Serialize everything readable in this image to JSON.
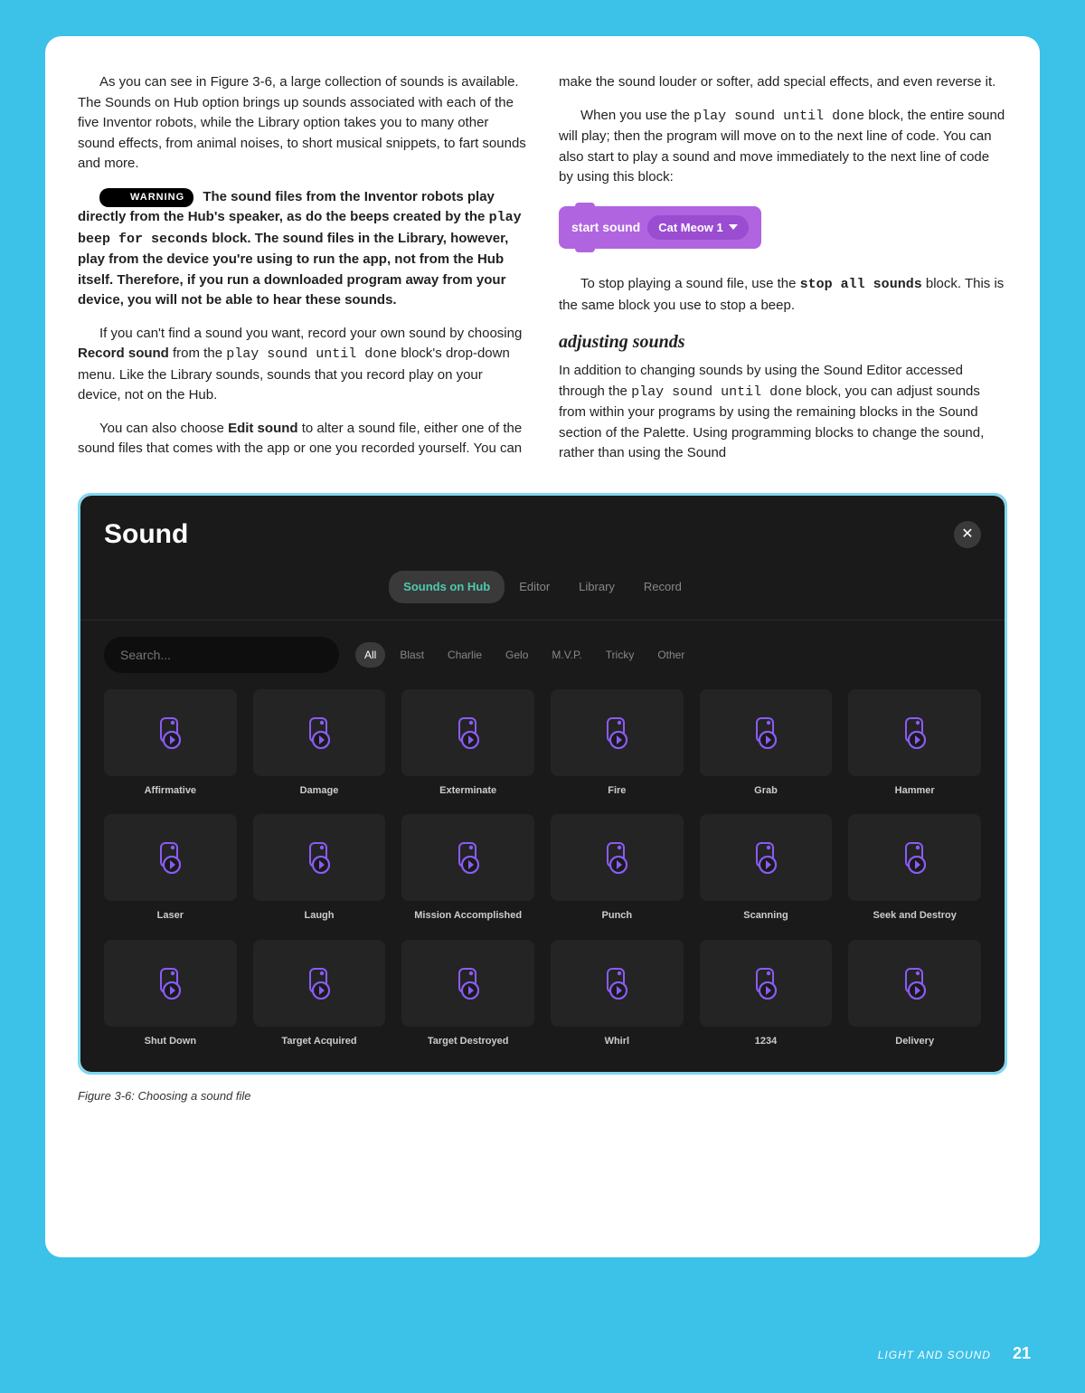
{
  "page_bg": "#3cc1e8",
  "content_bg": "#ffffff",
  "text": {
    "p1": "As you can see in Figure 3-6, a large collection of sounds is available. The Sounds on Hub option brings up sounds associated with each of the five Inventor robots, while the Library option takes you to many other sound effects, from animal noises, to short musical snippets, to fart sounds and more.",
    "warning_label": "WARNING",
    "warning_pre": "The sound files from the Inventor robots play directly from the Hub's speaker, as do the beeps created by the ",
    "warning_code": "play beep for seconds",
    "warning_post": " block. The sound files in the Library, however, play from the device you're using to run the app, not from the Hub itself. Therefore, if you run a downloaded program away from your device, you will not be able to hear these sounds.",
    "p3a": "If you can't find a sound you want, record your own sound by choosing ",
    "p3b_bold": "Record sound",
    "p3c": " from the ",
    "p3_code": "play sound until done",
    "p3d": " block's drop-down menu. Like the Library sounds, sounds that you record play on your device, not on the Hub.",
    "p4a": "You can also choose ",
    "p4b_bold": "Edit sound",
    "p4c": " to alter a sound file, either one of the sound files that comes with the app or one you recorded yourself. You can make the sound louder or softer, add special effects, and even reverse it.",
    "p5a": "When you use the ",
    "p5_code": "play sound until done",
    "p5b": " block, the entire sound will play; then the program will move on to the next line of code. You can also start to play a sound and move immediately to the next line of code by using this block:",
    "scratch_label": "start sound",
    "scratch_value": "Cat Meow 1",
    "p6a": "To stop playing a sound file, use the ",
    "p6_code": "stop all sounds",
    "p6b": " block. This is the same block you use to stop a beep.",
    "subhead": "adjusting sounds",
    "p7a": "In addition to changing sounds by using the Sound Editor accessed through the ",
    "p7_code": "play sound until done",
    "p7b": " block, you can adjust sounds from within your programs by using the remaining blocks in the Sound section of the Palette. Using programming blocks to change the sound, rather than using the Sound"
  },
  "dialog": {
    "title": "Sound",
    "tabs": [
      "Sounds on Hub",
      "Editor",
      "Library",
      "Record"
    ],
    "active_tab": 0,
    "search_placeholder": "Search...",
    "filters": [
      "All",
      "Blast",
      "Charlie",
      "Gelo",
      "M.V.P.",
      "Tricky",
      "Other"
    ],
    "active_filter": 0,
    "sounds": [
      "Affirmative",
      "Damage",
      "Exterminate",
      "Fire",
      "Grab",
      "Hammer",
      "Laser",
      "Laugh",
      "Mission Accomplished",
      "Punch",
      "Scanning",
      "Seek and Destroy",
      "Shut Down",
      "Target Acquired",
      "Target Destroyed",
      "Whirl",
      "1234",
      "Delivery"
    ],
    "icon_color": "#8a5cf6",
    "tile_bg": "#242424",
    "bg": "#1a1a1a"
  },
  "caption": "Figure 3-6: Choosing a sound file",
  "footer": {
    "chapter": "LIGHT AND SOUND",
    "page": "21"
  }
}
